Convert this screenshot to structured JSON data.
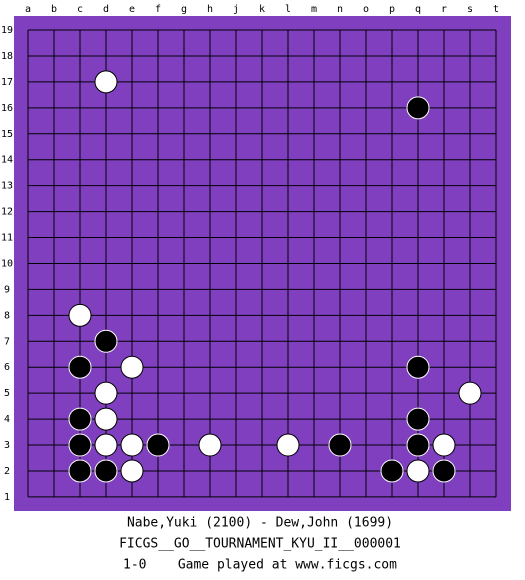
{
  "board": {
    "columns": [
      "a",
      "b",
      "c",
      "d",
      "e",
      "f",
      "g",
      "h",
      "j",
      "k",
      "l",
      "m",
      "n",
      "o",
      "p",
      "q",
      "r",
      "s",
      "t"
    ],
    "rows": [
      19,
      18,
      17,
      16,
      15,
      14,
      13,
      12,
      11,
      10,
      9,
      8,
      7,
      6,
      5,
      4,
      3,
      2,
      1
    ],
    "stones": [
      {
        "col": "d",
        "row": 17,
        "color": "white"
      },
      {
        "col": "q",
        "row": 16,
        "color": "black"
      },
      {
        "col": "c",
        "row": 8,
        "color": "white"
      },
      {
        "col": "d",
        "row": 7,
        "color": "black"
      },
      {
        "col": "c",
        "row": 6,
        "color": "black"
      },
      {
        "col": "e",
        "row": 6,
        "color": "white"
      },
      {
        "col": "q",
        "row": 6,
        "color": "black"
      },
      {
        "col": "d",
        "row": 5,
        "color": "white"
      },
      {
        "col": "s",
        "row": 5,
        "color": "white"
      },
      {
        "col": "c",
        "row": 4,
        "color": "black"
      },
      {
        "col": "d",
        "row": 4,
        "color": "white"
      },
      {
        "col": "q",
        "row": 4,
        "color": "black"
      },
      {
        "col": "c",
        "row": 3,
        "color": "black"
      },
      {
        "col": "d",
        "row": 3,
        "color": "white"
      },
      {
        "col": "e",
        "row": 3,
        "color": "white"
      },
      {
        "col": "f",
        "row": 3,
        "color": "black"
      },
      {
        "col": "h",
        "row": 3,
        "color": "white"
      },
      {
        "col": "l",
        "row": 3,
        "color": "white"
      },
      {
        "col": "n",
        "row": 3,
        "color": "black"
      },
      {
        "col": "q",
        "row": 3,
        "color": "black"
      },
      {
        "col": "r",
        "row": 3,
        "color": "white"
      },
      {
        "col": "c",
        "row": 2,
        "color": "black"
      },
      {
        "col": "d",
        "row": 2,
        "color": "black"
      },
      {
        "col": "e",
        "row": 2,
        "color": "white"
      },
      {
        "col": "p",
        "row": 2,
        "color": "black"
      },
      {
        "col": "q",
        "row": 2,
        "color": "white"
      },
      {
        "col": "r",
        "row": 2,
        "color": "black"
      }
    ]
  },
  "footer": {
    "players": "Nabe,Yuki (2100) - Dew,John (1699)",
    "event": "FICGS__GO__TOURNAMENT_KYU_II__000001",
    "result": "1-0    Game played at www.ficgs.com"
  }
}
